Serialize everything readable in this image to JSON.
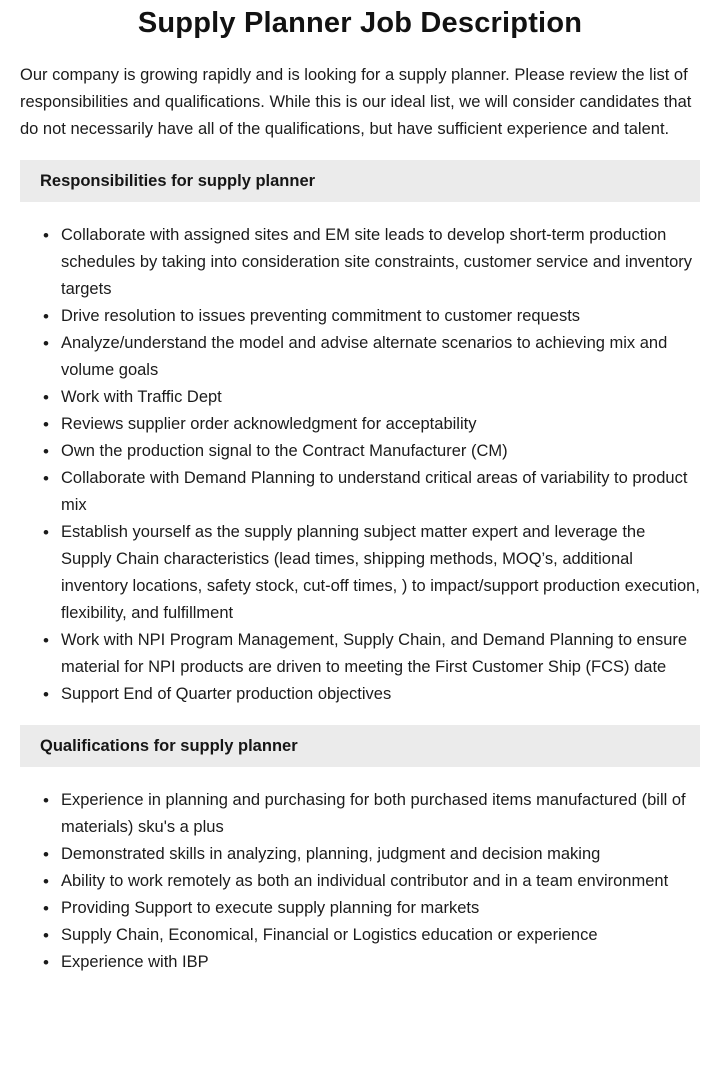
{
  "document": {
    "title": "Supply Planner Job Description",
    "intro": "Our company is growing rapidly and is looking for a supply planner. Please review the list of responsibilities and qualifications. While this is our ideal list, we will consider candidates that do not necessarily have all of the qualifications, but have sufficient experience and talent.",
    "sections": [
      {
        "heading": "Responsibilities for supply planner",
        "items": [
          "Collaborate with assigned sites and EM site leads to develop short-term production schedules by taking into consideration site constraints, customer service and inventory targets",
          "Drive resolution to issues preventing commitment to customer requests",
          "Analyze/understand the model and advise alternate scenarios to achieving mix and volume goals",
          "Work with Traffic Dept",
          "Reviews supplier order acknowledgment for acceptability",
          "Own the production signal to the Contract Manufacturer (CM)",
          "Collaborate with Demand Planning to understand critical areas of variability to product mix",
          "Establish yourself as the supply planning subject matter expert and leverage the Supply Chain characteristics (lead times, shipping methods, MOQ’s, additional inventory locations, safety stock, cut-off times, ) to impact/support production execution, flexibility, and fulfillment",
          "Work with NPI Program Management, Supply Chain, and Demand Planning to ensure material for NPI products are driven to meeting the First Customer Ship (FCS) date",
          "Support End of Quarter production objectives"
        ]
      },
      {
        "heading": "Qualifications for supply planner",
        "items": [
          "Experience in planning and purchasing for both purchased items manufactured (bill of materials) sku's a plus",
          "Demonstrated skills in analyzing, planning, judgment and decision making",
          "Ability to work remotely as both an individual contributor and in a team environment",
          "Providing Support to execute supply planning for markets",
          "Supply Chain, Economical, Financial or Logistics education or experience",
          "Experience with IBP"
        ]
      }
    ]
  },
  "colors": {
    "section_header_bg": "#ebebeb",
    "text": "#1b1b1b",
    "background": "#ffffff"
  }
}
